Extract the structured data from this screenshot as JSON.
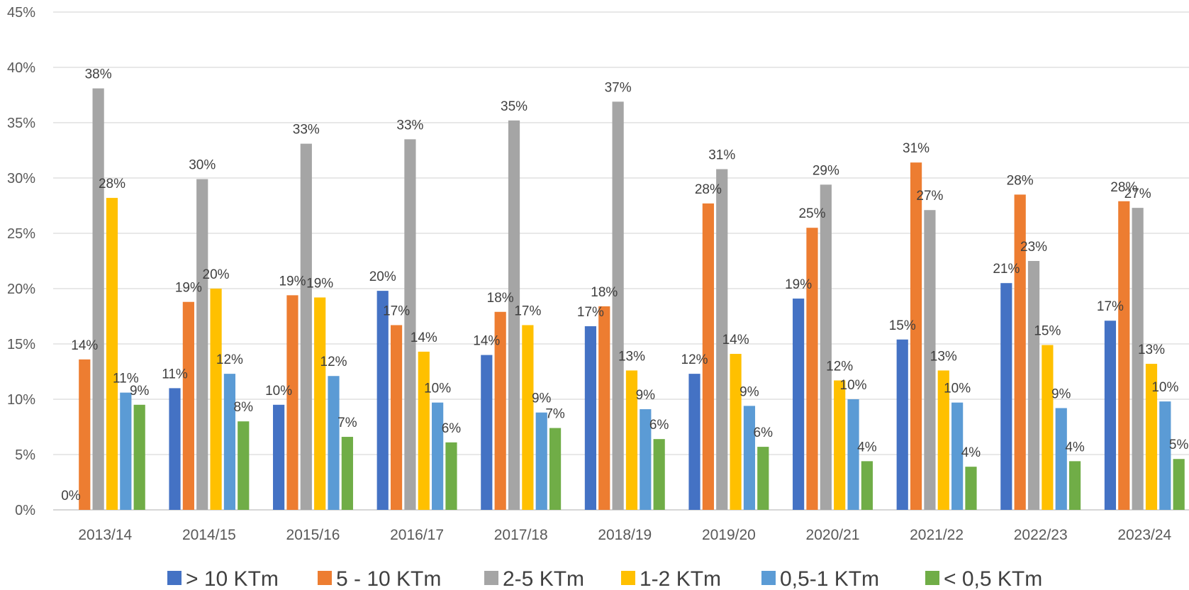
{
  "chart_data": {
    "type": "bar",
    "title": "",
    "xlabel": "",
    "ylabel": "",
    "ylim": [
      0,
      45
    ],
    "y_ticks": [
      "0%",
      "5%",
      "10%",
      "15%",
      "20%",
      "25%",
      "30%",
      "35%",
      "40%",
      "45%"
    ],
    "grid": true,
    "legend_position": "bottom",
    "categories": [
      "2013/14",
      "2014/15",
      "2015/16",
      "2016/17",
      "2017/18",
      "2018/19",
      "2019/20",
      "2020/21",
      "2021/22",
      "2022/23",
      "2023/24"
    ],
    "series": [
      {
        "name": "> 10 KTm",
        "color": "#4472C4",
        "values": [
          0,
          11,
          9.5,
          19.8,
          14,
          16.6,
          12.3,
          19.1,
          15.4,
          20.5,
          17.1
        ],
        "labels": [
          "0%",
          "11%",
          "10%",
          "20%",
          "14%",
          "17%",
          "12%",
          "19%",
          "15%",
          "21%",
          "17%"
        ]
      },
      {
        "name": "5 - 10 KTm",
        "color": "#ED7D31",
        "values": [
          13.6,
          18.8,
          19.4,
          16.7,
          17.9,
          18.4,
          27.7,
          25.5,
          31.4,
          28.5,
          27.9
        ],
        "labels": [
          "14%",
          "19%",
          "19%",
          "17%",
          "18%",
          "18%",
          "28%",
          "25%",
          "31%",
          "28%",
          "28%"
        ]
      },
      {
        "name": "2-5 KTm",
        "color": "#A5A5A5",
        "values": [
          38.1,
          29.9,
          33.1,
          33.5,
          35.2,
          36.9,
          30.8,
          29.4,
          27.1,
          22.5,
          27.3
        ],
        "labels": [
          "38%",
          "30%",
          "33%",
          "33%",
          "35%",
          "37%",
          "31%",
          "29%",
          "27%",
          "23%",
          "27%"
        ]
      },
      {
        "name": "1-2 KTm",
        "color": "#FFC000",
        "values": [
          28.2,
          20,
          19.2,
          14.3,
          16.7,
          12.6,
          14.1,
          11.7,
          12.6,
          14.9,
          13.2
        ],
        "labels": [
          "28%",
          "20%",
          "19%",
          "14%",
          "17%",
          "13%",
          "14%",
          "12%",
          "13%",
          "15%",
          "13%"
        ]
      },
      {
        "name": "0,5-1 KTm",
        "color": "#5B9BD5",
        "values": [
          10.6,
          12.3,
          12.1,
          9.7,
          8.8,
          9.1,
          9.4,
          10,
          9.7,
          9.2,
          9.8
        ],
        "labels": [
          "11%",
          "12%",
          "12%",
          "10%",
          "9%",
          "9%",
          "9%",
          "10%",
          "10%",
          "9%",
          "10%"
        ]
      },
      {
        "name": "< 0,5 KTm",
        "color": "#70AD47",
        "values": [
          9.5,
          8,
          6.6,
          6.1,
          7.4,
          6.4,
          5.7,
          4.4,
          3.9,
          4.4,
          4.6
        ],
        "labels": [
          "9%",
          "8%",
          "7%",
          "6%",
          "7%",
          "6%",
          "6%",
          "4%",
          "4%",
          "4%",
          "5%"
        ]
      }
    ]
  }
}
